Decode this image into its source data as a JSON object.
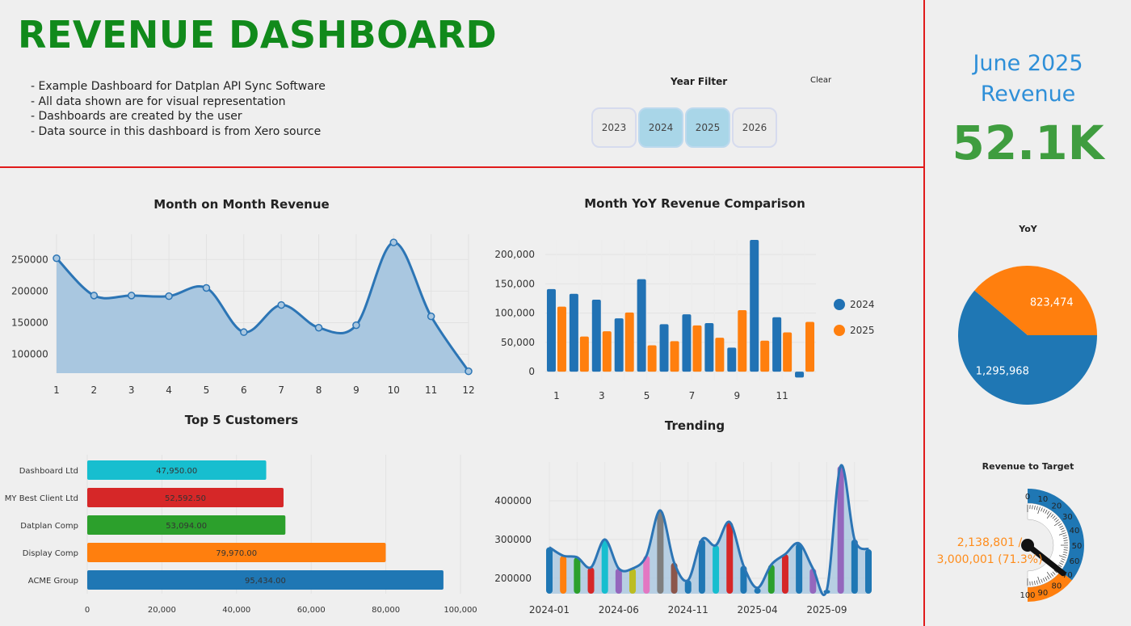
{
  "header": {
    "title": "REVENUE DASHBOARD",
    "notes": [
      "- Example Dashboard for Datplan API Sync Software",
      "- All data shown are for visual representation",
      "- Dashboards are created by the user",
      "- Data source in this dashboard is from Xero source"
    ]
  },
  "year_filter": {
    "label": "Year Filter",
    "clear_label": "Clear",
    "years": [
      {
        "label": "2023",
        "selected": false
      },
      {
        "label": "2024",
        "selected": true
      },
      {
        "label": "2025",
        "selected": true
      },
      {
        "label": "2026",
        "selected": false
      }
    ]
  },
  "kpi": {
    "title_line1": "June 2025",
    "title_line2": "Revenue",
    "value": "52.1K"
  },
  "colors": {
    "blue": "#2172b4",
    "orange": "#ff7f0e",
    "green_title": "#118a1b",
    "red_line": "#e01b1b"
  },
  "chart_data": [
    {
      "id": "mom",
      "type": "area",
      "title": "Month on Month Revenue",
      "x": [
        1,
        2,
        3,
        4,
        5,
        6,
        7,
        8,
        9,
        10,
        11,
        12
      ],
      "values": [
        252000,
        193000,
        193000,
        192000,
        205000,
        135000,
        178000,
        142000,
        146000,
        277000,
        160000,
        73000
      ],
      "ylim": [
        70000,
        290000
      ],
      "yticks": [
        100000,
        150000,
        200000,
        250000
      ]
    },
    {
      "id": "yoy",
      "type": "bar",
      "title": "Month YoY Revenue Comparison",
      "categories": [
        1,
        2,
        3,
        4,
        5,
        6,
        7,
        8,
        9,
        10,
        11,
        12
      ],
      "xticks": [
        1,
        3,
        5,
        7,
        9,
        11
      ],
      "series": [
        {
          "name": "2024",
          "color": "#2172b4",
          "values": [
            141000,
            133000,
            123000,
            91000,
            158000,
            81000,
            98000,
            83000,
            41000,
            225000,
            93000,
            -10000
          ]
        },
        {
          "name": "2025",
          "color": "#ff7f0e",
          "values": [
            111000,
            60000,
            69000,
            101000,
            45000,
            52000,
            79000,
            58000,
            105000,
            53000,
            67000,
            85000
          ]
        }
      ],
      "ylim": [
        -15000,
        225000
      ],
      "yticks": [
        0,
        50000,
        100000,
        150000,
        200000
      ],
      "legend": "right"
    },
    {
      "id": "customers",
      "type": "bar",
      "orientation": "horizontal",
      "title": "Top 5 Customers",
      "categories": [
        "Dashboard Ltd",
        "MY Best Client Ltd",
        "Datplan Comp",
        "Display Comp",
        "ACME Group"
      ],
      "values": [
        47950,
        52592.5,
        53094,
        79970,
        95434
      ],
      "labels": [
        "47,950.00",
        "52,592.50",
        "53,094.00",
        "79,970.00",
        "95,434.00"
      ],
      "colors": [
        "#17becf",
        "#d62728",
        "#2ca02c",
        "#ff7f0e",
        "#1f77b4"
      ],
      "xlim": [
        0,
        100000
      ],
      "xticks": [
        0,
        20000,
        40000,
        60000,
        80000,
        100000
      ]
    },
    {
      "id": "trending",
      "type": "area",
      "title": "Trending",
      "x": [
        "2024-01",
        "2024-02",
        "2024-03",
        "2024-04",
        "2024-05",
        "2024-06",
        "2024-07",
        "2024-08",
        "2024-09",
        "2024-10",
        "2024-11",
        "2024-12",
        "2025-01",
        "2025-02",
        "2025-03",
        "2025-04",
        "2025-05",
        "2025-06",
        "2025-07",
        "2025-08",
        "2025-09",
        "2025-10",
        "2025-11",
        "2025-12"
      ],
      "values": [
        280000,
        258000,
        254000,
        228000,
        300000,
        225000,
        225000,
        258000,
        375000,
        240000,
        195000,
        300000,
        285000,
        345000,
        232000,
        175000,
        235000,
        262000,
        290000,
        225000,
        170000,
        490000,
        300000,
        275000
      ],
      "bar_colors": [
        "#1f77b4",
        "#ff7f0e",
        "#2ca02c",
        "#d62728",
        "#17becf",
        "#9467bd",
        "#bcbd22",
        "#e377c2",
        "#7f7f7f",
        "#8c564b",
        "#1f77b4",
        "#1f77b4",
        "#17becf",
        "#d62728",
        "#1f77b4",
        "#1f77b4",
        "#2ca02c",
        "#d62728",
        "#1f77b4",
        "#9467bd",
        "#1f77b4",
        "#9467bd",
        "#1f77b4",
        "#1f77b4"
      ],
      "ylim": [
        160000,
        500000
      ],
      "yticks": [
        200000,
        300000,
        400000
      ],
      "xticks": [
        "2024-01",
        "2024-06",
        "2024-11",
        "2025-04",
        "2025-09"
      ]
    },
    {
      "id": "yoy_pie",
      "type": "pie",
      "title": "YoY",
      "slices": [
        {
          "label": "1,295,968",
          "value": 1295968,
          "color": "#1f77b4"
        },
        {
          "label": "823,474",
          "value": 823474,
          "color": "#ff7f0e"
        }
      ]
    },
    {
      "id": "target",
      "type": "gauge",
      "title": "Revenue to Target",
      "value": 2138801,
      "target": 3000001,
      "percent": 71.3,
      "value_label_line1": "2,138,801 /",
      "value_label_line2": "3,000,001 (71.3%)",
      "scale_ticks": [
        "0",
        "10",
        "20",
        "30",
        "40",
        "50",
        "60",
        "70",
        "80",
        "90",
        "100"
      ]
    }
  ]
}
